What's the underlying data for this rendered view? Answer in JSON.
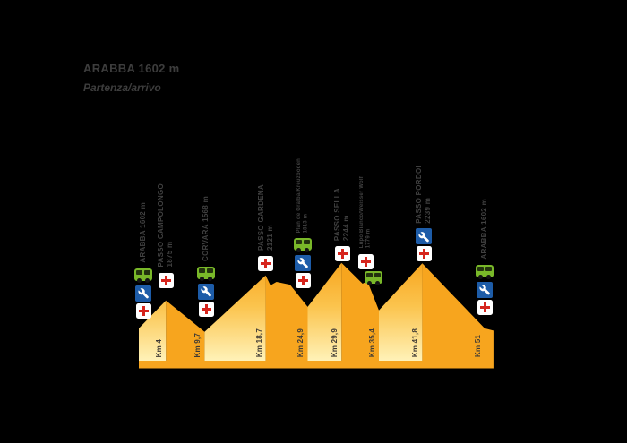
{
  "chart_data": {
    "type": "area",
    "title": "ARABBA 1602 m",
    "subtitle": "Partenza/arrivo",
    "x_unit": "km",
    "y_unit": "m",
    "x_range": [
      0,
      52.3
    ],
    "baseline_elevation_m": 1285,
    "grid": false,
    "legend": "none",
    "colors": {
      "segment_solid": "#f7a51e",
      "gradient_top": "#f7a51e",
      "gradient_mid": "#fbc44e",
      "gradient_bottom": "#fff2b8",
      "station_text": "#414141",
      "km_text": "#3e3a35",
      "medical_red": "#d6251d",
      "mechanic_blue": "#1d5ca8",
      "bus_green": "#79b829",
      "background": "#000000"
    },
    "profile_segments": [
      {
        "type": "climb",
        "points": [
          [
            0,
            1602
          ],
          [
            4,
            1875
          ]
        ]
      },
      {
        "type": "descent",
        "points": [
          [
            4,
            1875
          ],
          [
            9.7,
            1568
          ]
        ]
      },
      {
        "type": "climb",
        "points": [
          [
            9.7,
            1568
          ],
          [
            18.7,
            2121
          ]
        ]
      },
      {
        "type": "descent",
        "points": [
          [
            18.7,
            2121
          ],
          [
            19.4,
            2023
          ],
          [
            20.3,
            2058
          ],
          [
            22.3,
            2030
          ],
          [
            24.9,
            1813
          ]
        ]
      },
      {
        "type": "climb",
        "points": [
          [
            24.9,
            1813
          ],
          [
            29.9,
            2244
          ]
        ]
      },
      {
        "type": "descent",
        "points": [
          [
            29.9,
            2244
          ],
          [
            33.0,
            2040
          ],
          [
            33.7,
            2066
          ],
          [
            35.4,
            1779
          ]
        ]
      },
      {
        "type": "climb",
        "points": [
          [
            35.4,
            1779
          ],
          [
            41.8,
            2239
          ]
        ]
      },
      {
        "type": "descent",
        "points": [
          [
            41.8,
            2239
          ],
          [
            51,
            1602
          ],
          [
            52.3,
            1580
          ]
        ]
      }
    ],
    "stations": [
      {
        "name": "ARABBA",
        "elevation_m": 1602,
        "km": 0,
        "label_lines": [
          "ARABBA 1602 m"
        ],
        "km_label": "",
        "services": [
          "bus",
          "mechanic",
          "medical"
        ],
        "small": false
      },
      {
        "name": "PASSO CAMPOLONGO",
        "elevation_m": 1875,
        "km": 4,
        "label_lines": [
          "PASSO CAMPOLONGO",
          "1875 m"
        ],
        "km_label": "Km 4",
        "services": [
          "medical"
        ],
        "small": false
      },
      {
        "name": "CORVARA",
        "elevation_m": 1568,
        "km": 9.7,
        "label_lines": [
          "CORVARA 1568 m"
        ],
        "km_label": "Km 9,7",
        "services": [
          "bus",
          "mechanic",
          "medical"
        ],
        "small": false
      },
      {
        "name": "PASSO GARDENA",
        "elevation_m": 2121,
        "km": 18.7,
        "label_lines": [
          "PASSO GARDENA",
          "2121 m"
        ],
        "km_label": "Km 18,7",
        "services": [
          "medical"
        ],
        "small": false
      },
      {
        "name": "PLAN DE GRALBA / KREUZBODEN",
        "elevation_m": 1813,
        "km": 24.9,
        "label_lines": [
          "Plan de Gralba/Kreuzboden",
          "1813 m"
        ],
        "km_label": "Km 24,9",
        "services": [
          "bus",
          "mechanic",
          "medical"
        ],
        "small": true
      },
      {
        "name": "PASSO SELLA",
        "elevation_m": 2244,
        "km": 29.9,
        "label_lines": [
          "PASSO SELLA",
          "2244 m"
        ],
        "km_label": "Km 29,9",
        "services": [
          "medical"
        ],
        "small": false
      },
      {
        "name": "LUPO BIANCO / WEISSER WOLF",
        "elevation_m": 1779,
        "km": 35.4,
        "label_lines": [
          "Lupo Bianco/Weisser Wolf",
          "1779 m"
        ],
        "km_label": "Km 35,4",
        "services": [
          "medical",
          "bus"
        ],
        "small": true
      },
      {
        "name": "PASSO PORDOI",
        "elevation_m": 2239,
        "km": 41.8,
        "label_lines": [
          "PASSO PORDOI",
          "2239 m"
        ],
        "km_label": "Km 41,8",
        "services": [
          "mechanic",
          "medical"
        ],
        "small": false
      },
      {
        "name": "ARABBA",
        "elevation_m": 1602,
        "km": 51,
        "label_lines": [
          "ARABBA 1602 m"
        ],
        "km_label": "Km 51",
        "services": [
          "bus",
          "mechanic",
          "medical"
        ],
        "small": false
      }
    ],
    "icons_legend": {
      "bus": "shuttle-bus service point",
      "mechanic": "mechanical assistance",
      "medical": "medical assistance"
    }
  }
}
